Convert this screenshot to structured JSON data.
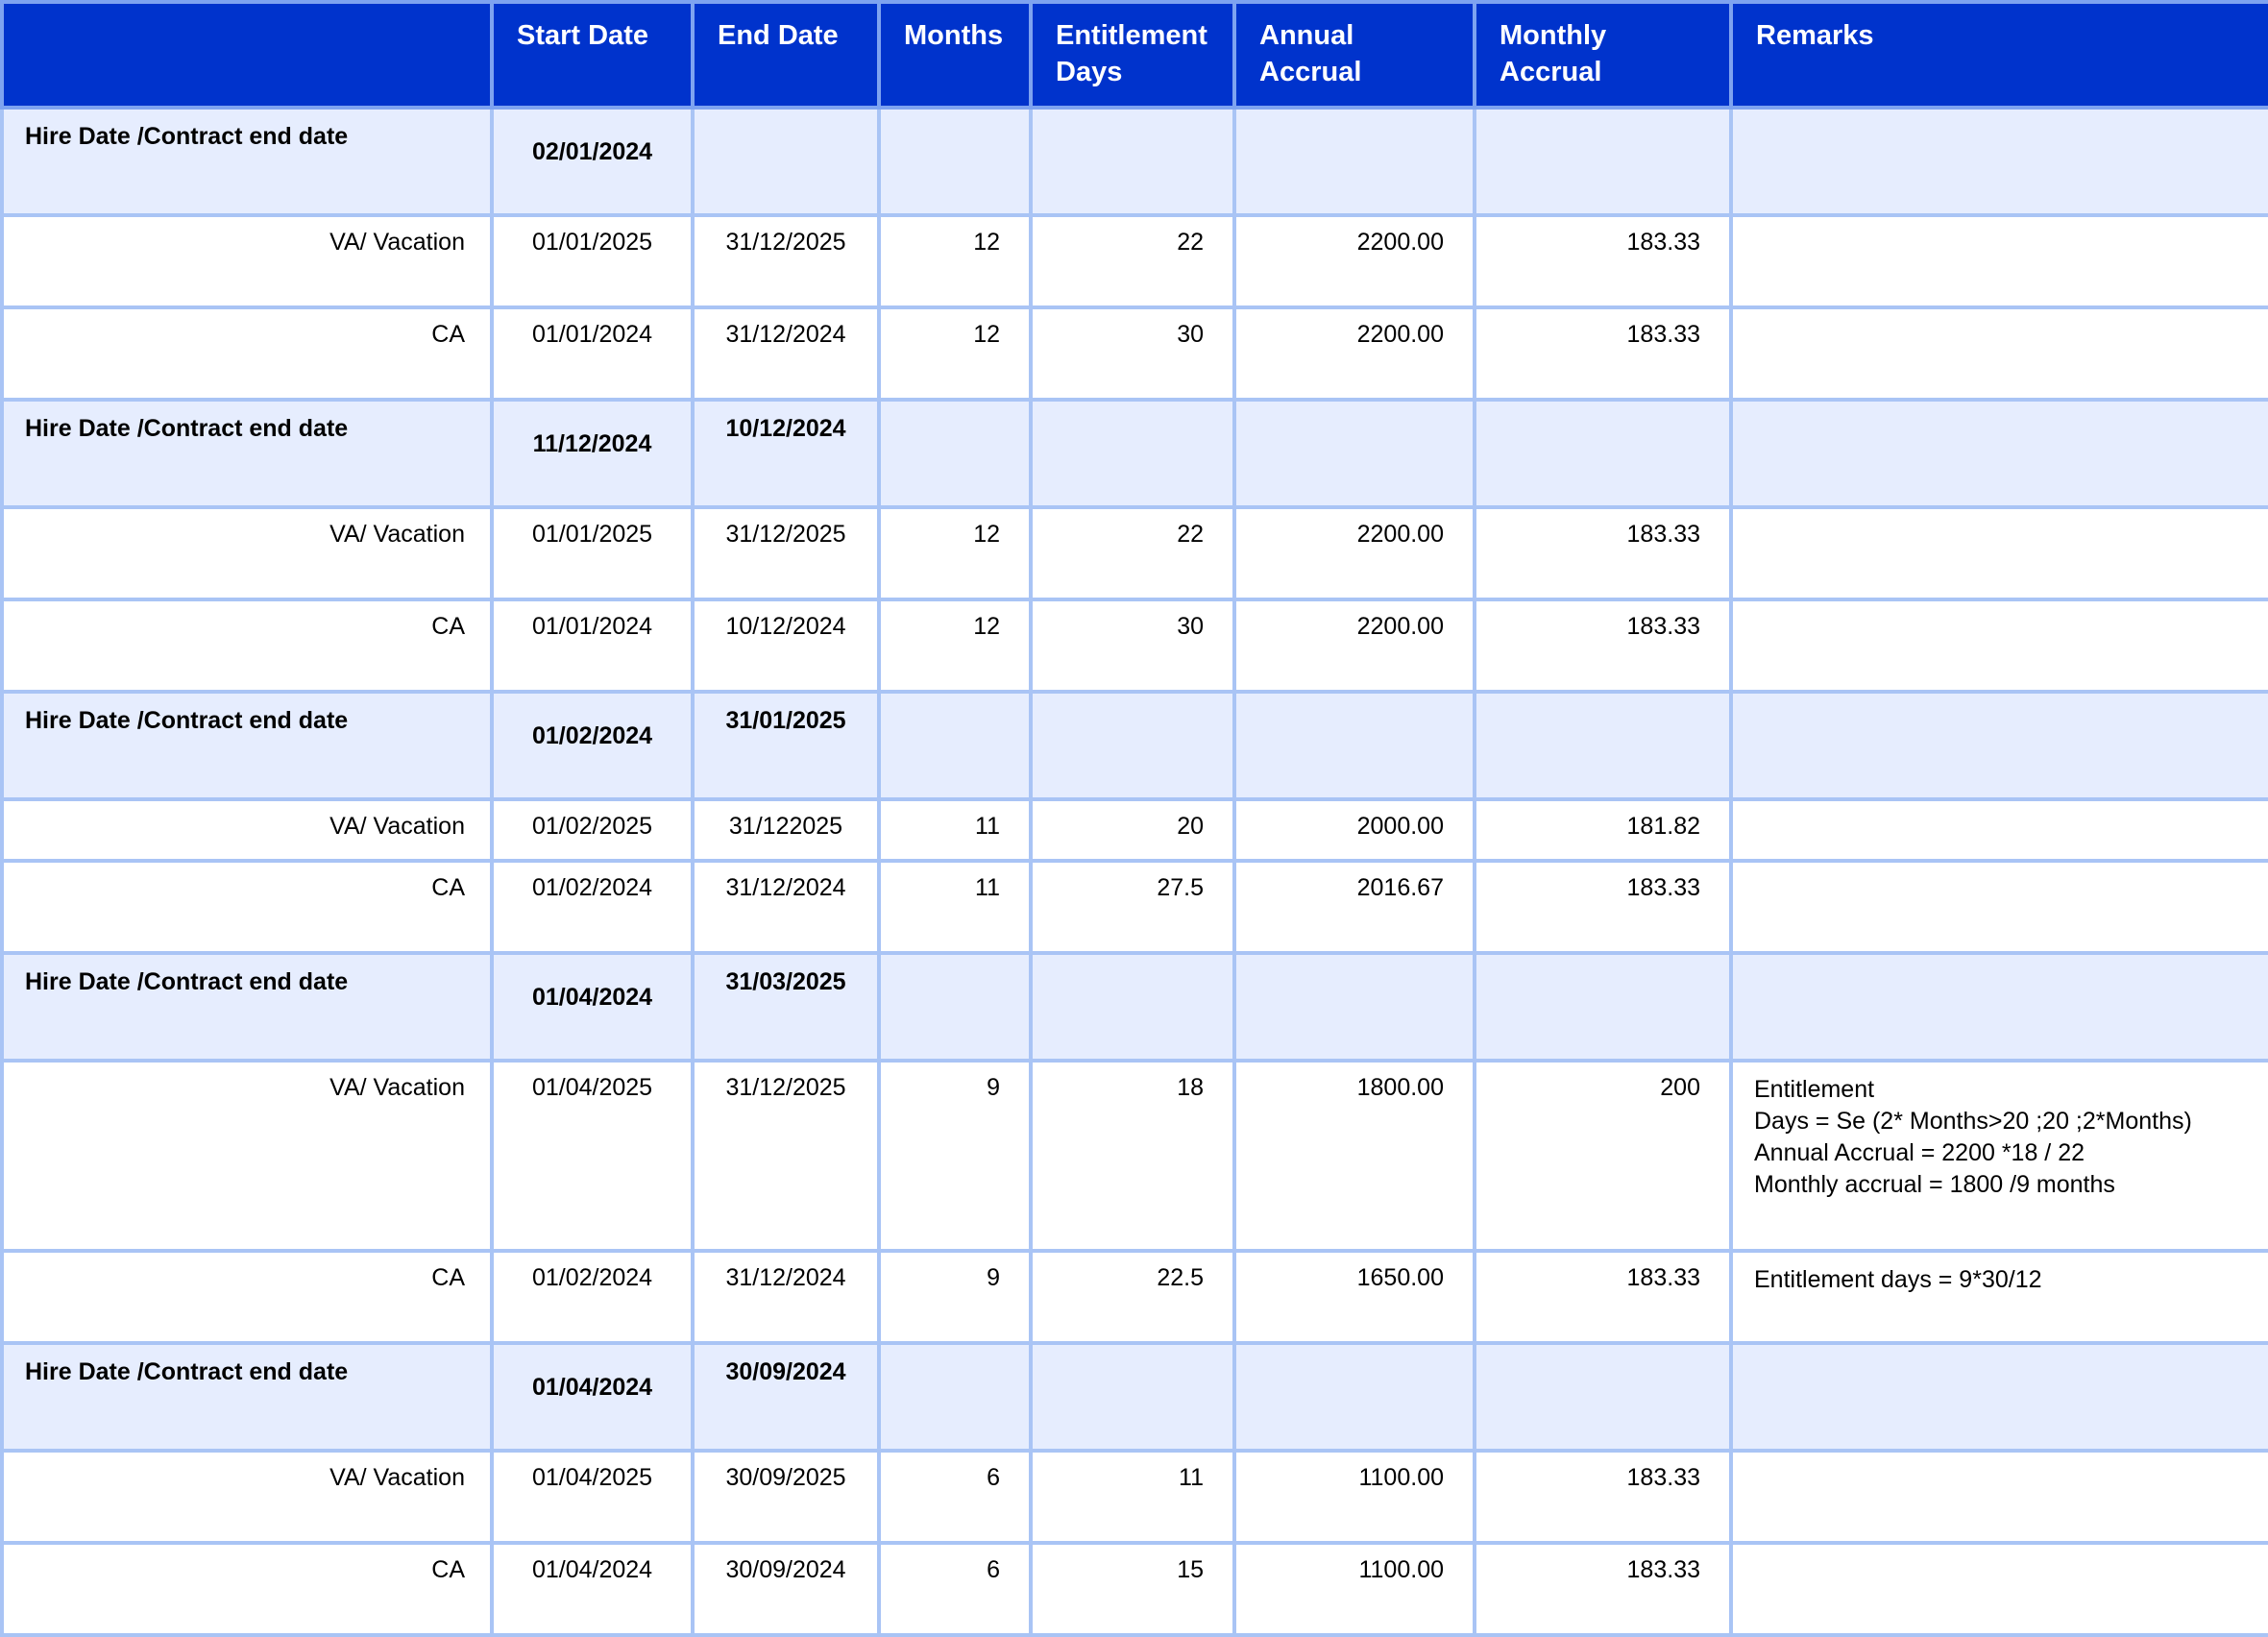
{
  "headers": [
    "",
    "Start Date",
    "End Date",
    "Months",
    "Entitlement Days",
    "Annual Accrual",
    "Monthly Accrual",
    "Remarks"
  ],
  "groups": [
    {
      "label": "Hire Date /Contract end date",
      "start": "02/01/2024",
      "end": "",
      "rows": [
        {
          "type": "VA/ Vacation",
          "start": "01/01/2025",
          "end": "31/12/2025",
          "months": "12",
          "days": "22",
          "annual": "2200.00",
          "monthly": "183.33",
          "remarks": []
        },
        {
          "type": "CA",
          "start": "01/01/2024",
          "end": "31/12/2024",
          "months": "12",
          "days": "30",
          "annual": "2200.00",
          "monthly": "183.33",
          "remarks": []
        }
      ]
    },
    {
      "label": "Hire Date /Contract end date",
      "start": "11/12/2024",
      "end": "10/12/2024",
      "rows": [
        {
          "type": "VA/ Vacation",
          "start": "01/01/2025",
          "end": "31/12/2025",
          "months": "12",
          "days": "22",
          "annual": "2200.00",
          "monthly": "183.33",
          "remarks": []
        },
        {
          "type": "CA",
          "start": "01/01/2024",
          "end": "10/12/2024",
          "months": "12",
          "days": "30",
          "annual": "2200.00",
          "monthly": "183.33",
          "remarks": []
        }
      ]
    },
    {
      "label": "Hire Date /Contract end date",
      "start": "01/02/2024",
      "end": "31/01/2025",
      "rows": [
        {
          "type": "VA/ Vacation",
          "start": "01/02/2025",
          "end": "31/122025",
          "months": "11",
          "days": "20",
          "annual": "2000.00",
          "monthly": "181.82",
          "remarks": []
        },
        {
          "type": "CA",
          "start": "01/02/2024",
          "end": "31/12/2024",
          "months": "11",
          "days": "27.5",
          "annual": "2016.67",
          "monthly": "183.33",
          "remarks": []
        }
      ]
    },
    {
      "label": "Hire Date /Contract end date",
      "start": "01/04/2024",
      "end": "31/03/2025",
      "rows": [
        {
          "type": "VA/ Vacation",
          "start": "01/04/2025",
          "end": "31/12/2025",
          "months": "9",
          "days": "18",
          "annual": "1800.00",
          "monthly": "200",
          "remarks": [
            "Entitlement",
            "Days  = Se (2* Months>20 ;20 ;2*Months)",
            "Annual Accrual  = 2200 *18 / 22",
            "Monthly accrual = 1800 /9 months"
          ]
        },
        {
          "type": "CA",
          "start": "01/02/2024",
          "end": "31/12/2024",
          "months": "9",
          "days": "22.5",
          "annual": "1650.00",
          "monthly": "183.33",
          "remarks": [
            "Entitlement days = 9*30/12"
          ]
        }
      ]
    },
    {
      "label": "Hire Date /Contract end date",
      "start": "01/04/2024",
      "end": "30/09/2024",
      "rows": [
        {
          "type": "VA/ Vacation",
          "start": "01/04/2025",
          "end": "30/09/2025",
          "months": "6",
          "days": "11",
          "annual": "1100.00",
          "monthly": "183.33",
          "remarks": []
        },
        {
          "type": "CA",
          "start": "01/04/2024",
          "end": "30/09/2024",
          "months": "6",
          "days": "15",
          "annual": "1100.00",
          "monthly": "183.33",
          "remarks": []
        }
      ]
    }
  ]
}
